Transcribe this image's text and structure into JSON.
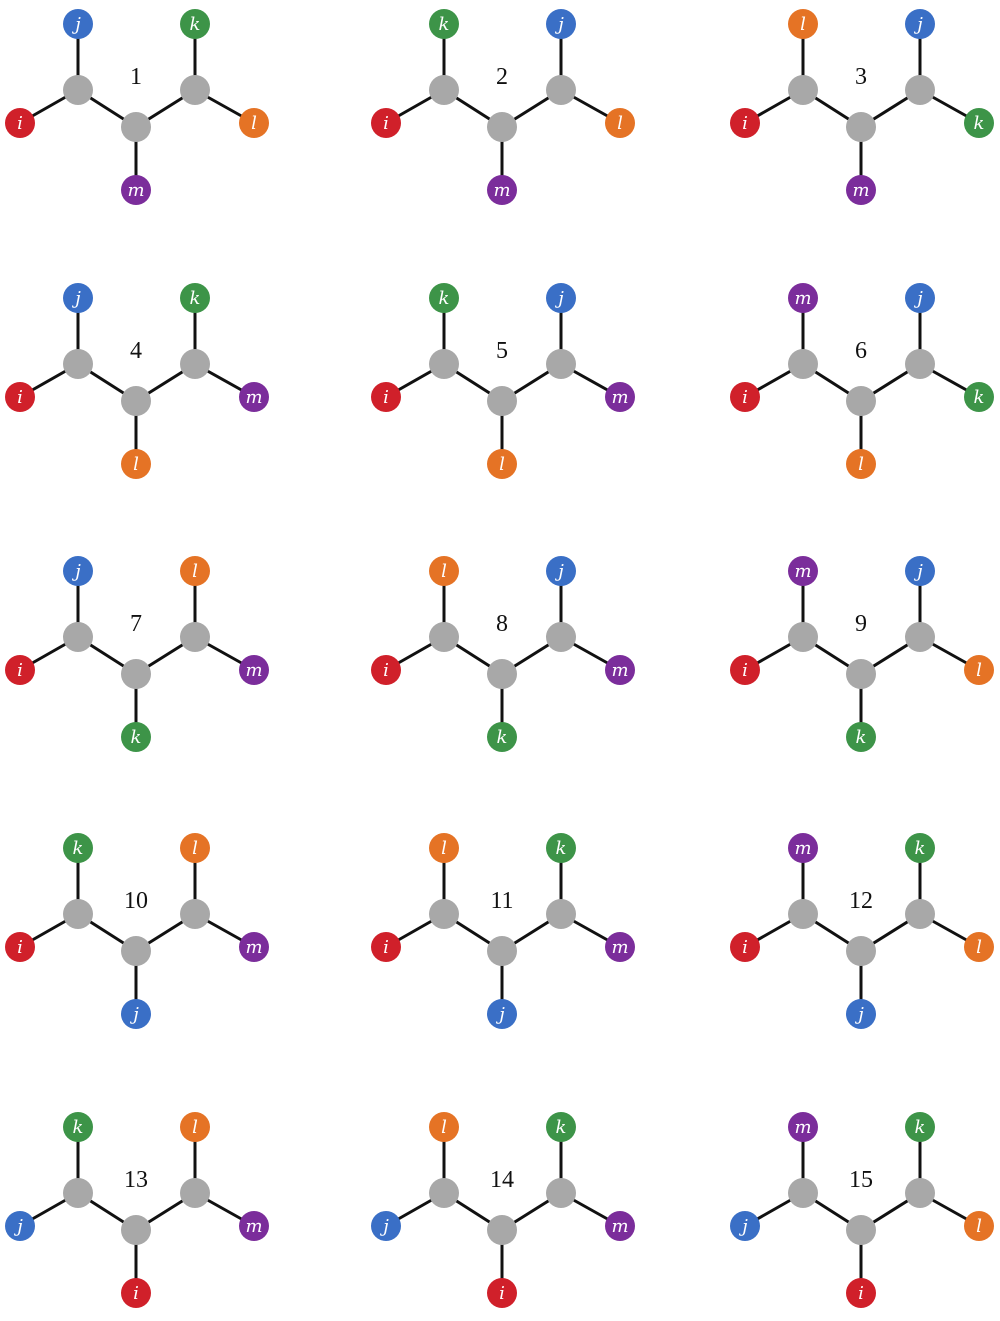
{
  "colors": {
    "i": "#d0202a",
    "j": "#3a6fc6",
    "k": "#3d9448",
    "l": "#e57325",
    "m": "#7b2d9b",
    "backbone": "#a8a8a8",
    "bond": "#111111"
  },
  "labels": {
    "i": "i",
    "j": "j",
    "k": "k",
    "l": "l",
    "m": "m"
  },
  "molecules": [
    {
      "number": "1",
      "subs": {
        "left_top": "j",
        "left": "i",
        "bottom": "m",
        "right_top": "k",
        "right": "l"
      }
    },
    {
      "number": "2",
      "subs": {
        "left_top": "k",
        "left": "i",
        "bottom": "m",
        "right_top": "j",
        "right": "l"
      }
    },
    {
      "number": "3",
      "subs": {
        "left_top": "l",
        "left": "i",
        "bottom": "m",
        "right_top": "j",
        "right": "k"
      }
    },
    {
      "number": "4",
      "subs": {
        "left_top": "j",
        "left": "i",
        "bottom": "l",
        "right_top": "k",
        "right": "m"
      }
    },
    {
      "number": "5",
      "subs": {
        "left_top": "k",
        "left": "i",
        "bottom": "l",
        "right_top": "j",
        "right": "m"
      }
    },
    {
      "number": "6",
      "subs": {
        "left_top": "m",
        "left": "i",
        "bottom": "l",
        "right_top": "j",
        "right": "k"
      }
    },
    {
      "number": "7",
      "subs": {
        "left_top": "j",
        "left": "i",
        "bottom": "k",
        "right_top": "l",
        "right": "m"
      }
    },
    {
      "number": "8",
      "subs": {
        "left_top": "l",
        "left": "i",
        "bottom": "k",
        "right_top": "j",
        "right": "m"
      }
    },
    {
      "number": "9",
      "subs": {
        "left_top": "m",
        "left": "i",
        "bottom": "k",
        "right_top": "j",
        "right": "l"
      }
    },
    {
      "number": "10",
      "subs": {
        "left_top": "k",
        "left": "i",
        "bottom": "j",
        "right_top": "l",
        "right": "m"
      }
    },
    {
      "number": "11",
      "subs": {
        "left_top": "l",
        "left": "i",
        "bottom": "j",
        "right_top": "k",
        "right": "m"
      }
    },
    {
      "number": "12",
      "subs": {
        "left_top": "m",
        "left": "i",
        "bottom": "j",
        "right_top": "k",
        "right": "l"
      }
    },
    {
      "number": "13",
      "subs": {
        "left_top": "k",
        "left": "j",
        "bottom": "i",
        "right_top": "l",
        "right": "m"
      }
    },
    {
      "number": "14",
      "subs": {
        "left_top": "l",
        "left": "j",
        "bottom": "i",
        "right_top": "k",
        "right": "m"
      }
    },
    {
      "number": "15",
      "subs": {
        "left_top": "m",
        "left": "j",
        "bottom": "i",
        "right_top": "k",
        "right": "l"
      }
    }
  ]
}
